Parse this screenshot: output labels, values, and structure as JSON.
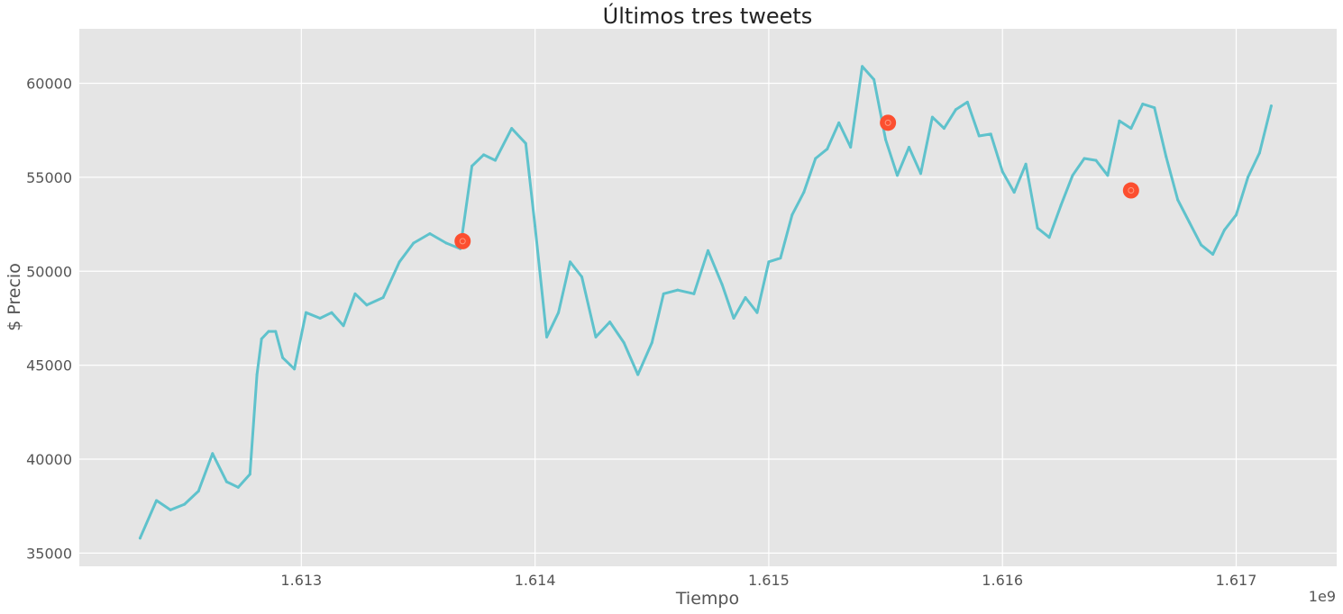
{
  "chart_data": {
    "type": "line",
    "title": "Últimos tres tweets",
    "xlabel": "Tiempo",
    "ylabel": "$ Precio",
    "x_offset_label": "1e9",
    "xlim": [
      1.61205,
      1.61743
    ],
    "ylim": [
      34300,
      62900
    ],
    "x_ticks": [
      1.613,
      1.614,
      1.615,
      1.616,
      1.617
    ],
    "x_tick_labels": [
      "1.613",
      "1.614",
      "1.615",
      "1.616",
      "1.617"
    ],
    "y_ticks": [
      35000,
      40000,
      45000,
      50000,
      55000,
      60000
    ],
    "y_tick_labels": [
      "35000",
      "40000",
      "45000",
      "50000",
      "55000",
      "60000"
    ],
    "grid": true,
    "series": [
      {
        "color": "#5fc2cc",
        "x": [
          1.61231,
          1.61238,
          1.61244,
          1.6125,
          1.61256,
          1.61262,
          1.61268,
          1.61273,
          1.61278,
          1.61281,
          1.61283,
          1.61286,
          1.61289,
          1.61292,
          1.61297,
          1.61302,
          1.61308,
          1.61313,
          1.61318,
          1.61323,
          1.61328,
          1.61335,
          1.61342,
          1.61348,
          1.61355,
          1.61362,
          1.61368,
          1.61373,
          1.61378,
          1.61383,
          1.6139,
          1.61396,
          1.614,
          1.61405,
          1.6141,
          1.61415,
          1.6142,
          1.61426,
          1.61432,
          1.61438,
          1.61444,
          1.6145,
          1.61455,
          1.61461,
          1.61468,
          1.61474,
          1.6148,
          1.61485,
          1.6149,
          1.61495,
          1.615,
          1.61505,
          1.6151,
          1.61515,
          1.6152,
          1.61525,
          1.6153,
          1.61535,
          1.6154,
          1.61545,
          1.6155,
          1.61555,
          1.6156,
          1.61565,
          1.6157,
          1.61575,
          1.6158,
          1.61585,
          1.6159,
          1.61595,
          1.616,
          1.61605,
          1.6161,
          1.61615,
          1.6162,
          1.61625,
          1.6163,
          1.61635,
          1.6164,
          1.61645,
          1.6165,
          1.61655,
          1.6166,
          1.61665,
          1.6167,
          1.61675,
          1.6168,
          1.61685,
          1.6169,
          1.61695,
          1.617,
          1.61705,
          1.6171,
          1.61715
        ],
        "y": [
          35800,
          37800,
          37300,
          37600,
          38300,
          40300,
          38800,
          38500,
          39200,
          44500,
          46400,
          46800,
          46800,
          45400,
          44800,
          47800,
          47500,
          47800,
          47100,
          48800,
          48200,
          48600,
          50500,
          51500,
          52000,
          51500,
          51200,
          55600,
          56200,
          55900,
          57600,
          56800,
          52400,
          46500,
          47800,
          50500,
          49700,
          46500,
          47300,
          46200,
          44500,
          46200,
          48800,
          49000,
          48800,
          51100,
          49300,
          47500,
          48600,
          47800,
          50500,
          50700,
          53000,
          54200,
          56000,
          56500,
          57900,
          56600,
          60900,
          60200,
          57000,
          55100,
          56600,
          55200,
          58200,
          57600,
          58600,
          59000,
          57200,
          57300,
          55300,
          54200,
          55700,
          52300,
          51800,
          53500,
          55100,
          56000,
          55900,
          55100,
          58000,
          57600,
          58900,
          58700,
          56100,
          53800,
          52600,
          51400,
          50900,
          52200,
          53000,
          55000,
          56300,
          58800
        ]
      }
    ],
    "markers": {
      "color": "#fc4f30",
      "x": [
        1.61369,
        1.61551,
        1.61655
      ],
      "y": [
        51600,
        57900,
        54300
      ]
    }
  }
}
